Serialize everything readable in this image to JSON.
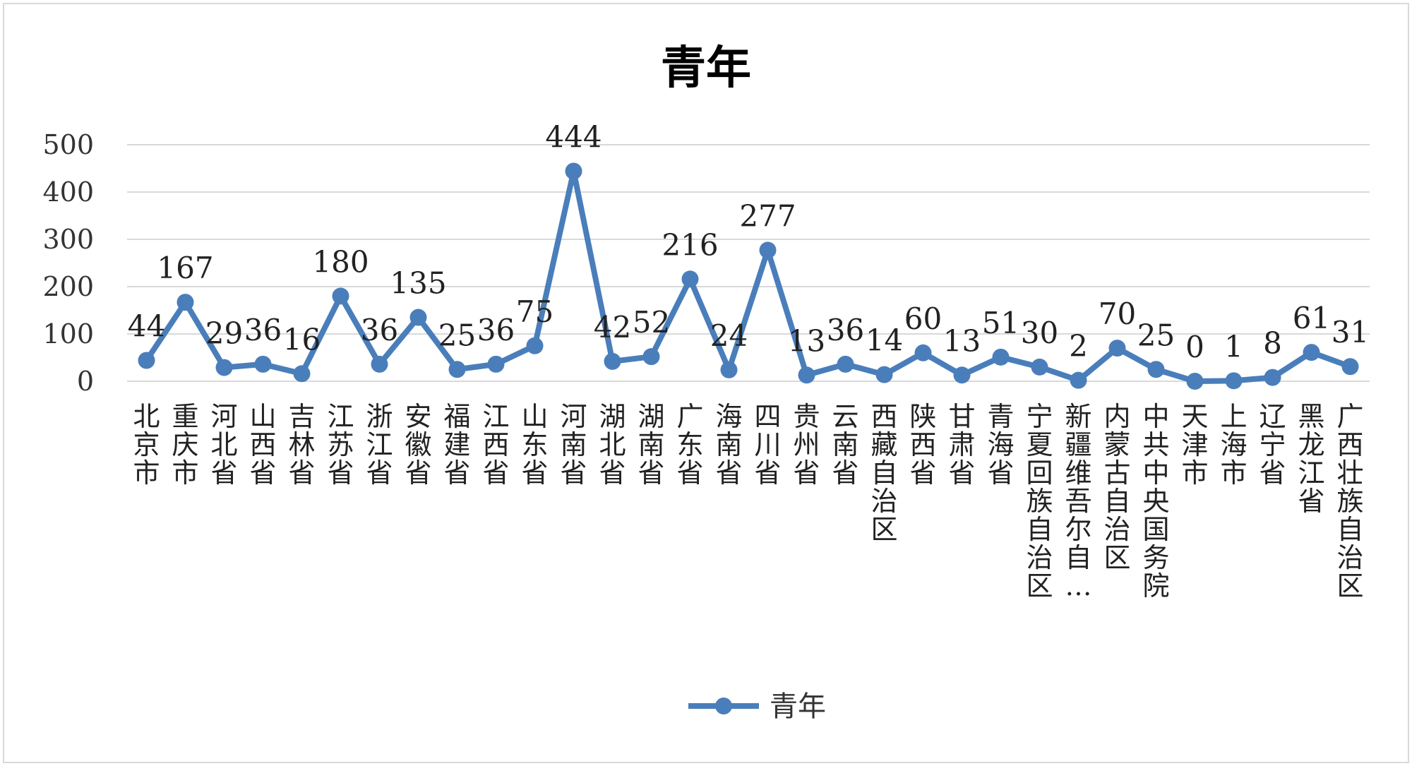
{
  "chart_data": {
    "type": "line",
    "title": "青年",
    "xlabel": "",
    "ylabel": "",
    "ylim": [
      0,
      500
    ],
    "yticks": [
      0,
      100,
      200,
      300,
      400,
      500
    ],
    "grid": true,
    "legend_position": "bottom",
    "categories": [
      "北京市",
      "重庆市",
      "河北省",
      "山西省",
      "吉林省",
      "江苏省",
      "浙江省",
      "安徽省",
      "福建省",
      "江西省",
      "山东省",
      "河南省",
      "湖北省",
      "湖南省",
      "广东省",
      "海南省",
      "四川省",
      "贵州省",
      "云南省",
      "西藏自治区",
      "陕西省",
      "甘肃省",
      "青海省",
      "宁夏回族自治区",
      "新疆维吾尔自…",
      "内蒙古自治区",
      "中共中央国务院",
      "天津市",
      "上海市",
      "辽宁省",
      "黑龙江省",
      "广西壮族自治区"
    ],
    "series": [
      {
        "name": "青年",
        "color": "#4a7ebb",
        "values": [
          44,
          167,
          29,
          36,
          16,
          180,
          36,
          135,
          25,
          36,
          75,
          444,
          42,
          52,
          216,
          24,
          277,
          13,
          36,
          14,
          60,
          13,
          51,
          30,
          2,
          70,
          25,
          0,
          1,
          8,
          61,
          31
        ]
      }
    ]
  }
}
